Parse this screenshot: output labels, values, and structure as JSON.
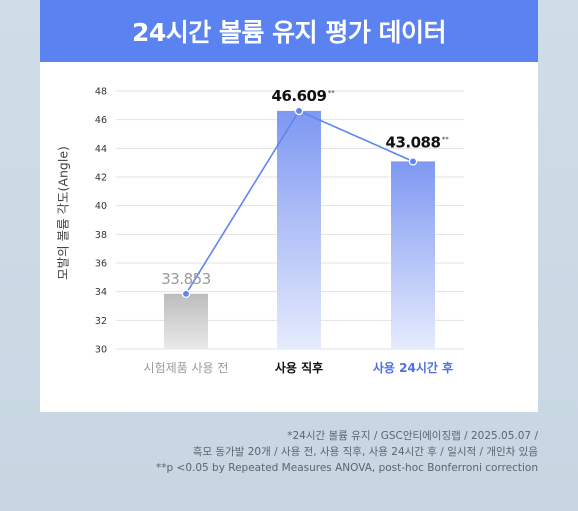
{
  "title": "24시간 볼륨 유지 평가 데이터",
  "chart_data": {
    "type": "bar",
    "ylabel": "모발의 볼륨 각도(Angle)",
    "ylim": [
      30,
      48
    ],
    "yticks": [
      "48",
      "46",
      "44",
      "42",
      "40",
      "38",
      "36",
      "34",
      "32",
      "30"
    ],
    "categories": [
      "시험제품 사용 전",
      "사용 직후",
      "사용 24시간 후"
    ],
    "values": [
      33.853,
      46.609,
      43.088
    ],
    "value_labels": [
      "33.853",
      "46.609",
      "43.088"
    ],
    "significance_marks": [
      "",
      "**",
      "**"
    ],
    "grid": true,
    "colors": {
      "bar_gray": "#c6c6c6",
      "bar_blue": "#7e98f2",
      "line": "#5f86ee",
      "category_highlight": "#4f6fe6"
    }
  },
  "footnotes": [
    "*24시간 볼륨 유지 / GSC안티에이징랩 / 2025.05.07 /",
    "흑모 동가발 20개 / 사용 전, 사용 직후, 사용 24시간 후 / 일시적 / 개인차 있음",
    "**p <0.05 by Repeated Measures ANOVA, post-hoc Bonferroni correction"
  ]
}
